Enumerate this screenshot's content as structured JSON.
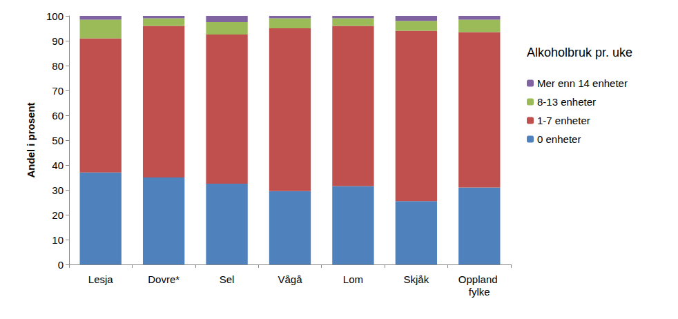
{
  "chart_data": {
    "type": "bar",
    "stacked": true,
    "orientation": "vertical",
    "legend_title": "Alkoholbruk pr. uke",
    "y_label": "Andel i prosent",
    "categories": [
      "Lesja",
      "Dovre*",
      "Sel",
      "Vågå",
      "Lom",
      "Skjåk",
      "Oppland fylke"
    ],
    "series": [
      {
        "name": "0 enheter",
        "color": "#4F81BD",
        "values": [
          37,
          35,
          32.5,
          29.5,
          31.5,
          25.5,
          31
        ]
      },
      {
        "name": "1-7 enheter",
        "color": "#C0504D",
        "values": [
          54,
          61,
          60,
          65.5,
          64.5,
          68.5,
          62.5
        ]
      },
      {
        "name": "8-13 enheter",
        "color": "#9BBB59",
        "values": [
          7.5,
          3,
          5,
          4,
          3,
          4,
          5
        ]
      },
      {
        "name": "Mer enn 14 enheter",
        "color": "#8064A2",
        "values": [
          1.5,
          1,
          2.5,
          1,
          1,
          2,
          1.5
        ]
      }
    ],
    "ylim": [
      0,
      100
    ],
    "yticks": [
      0,
      10,
      20,
      30,
      40,
      50,
      60,
      70,
      80,
      90,
      100
    ],
    "grid": false,
    "legend": "right"
  }
}
